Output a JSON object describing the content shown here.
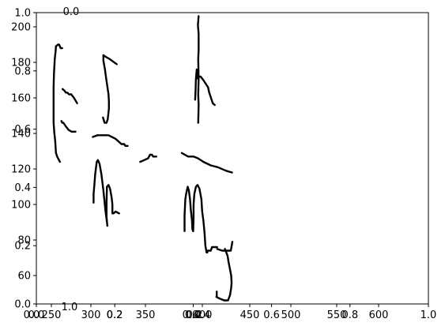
{
  "chart_data": {
    "type": "line",
    "title": "",
    "xlabel": "",
    "ylabel": "",
    "grid": false,
    "legend": "none",
    "axes": [
      {
        "name": "outer",
        "xlim": [
          0,
          1
        ],
        "ylim": [
          0,
          1
        ],
        "x_ticks": [
          "0.0",
          "0.2",
          "0.4",
          "0.6",
          "0.8",
          "1.0"
        ],
        "y_ticks": [
          "0.0",
          "0.2",
          "0.4",
          "0.6",
          "0.8",
          "1.0"
        ]
      },
      {
        "name": "inner",
        "xlim": [
          200,
          1200
        ],
        "ylim": [
          44,
          208
        ],
        "x_ticks": [
          "250",
          "300",
          "350",
          "400",
          "450",
          "500",
          "550",
          "600"
        ],
        "y_ticks": [
          "60",
          "80",
          "100",
          "120",
          "140",
          "160",
          "180",
          "200"
        ]
      }
    ],
    "stray_labels": [
      {
        "text": "0.0",
        "kind": "top"
      },
      {
        "text": "1.0",
        "kind": "bottom"
      },
      {
        "text": "0.0",
        "kind": "bottom-left"
      },
      {
        "text": "0.2",
        "kind": "bottom-left"
      },
      {
        "text": "0.0",
        "kind": "bottom-mid"
      },
      {
        "text": "0.2",
        "kind": "bottom-mid"
      },
      {
        "text": "0.4",
        "kind": "bottom-mid"
      }
    ],
    "series": [
      {
        "values": [
          [
            250,
            189
          ],
          [
            249,
            186
          ],
          [
            247,
            182
          ],
          [
            245,
            174
          ],
          [
            244,
            166
          ],
          [
            244,
            154
          ],
          [
            244,
            146
          ],
          [
            246,
            140
          ],
          [
            248,
            136
          ],
          [
            250,
            129
          ],
          [
            253,
            127
          ],
          [
            260,
            124
          ]
        ]
      },
      {
        "values": [
          [
            250,
            189
          ],
          [
            255,
            190
          ],
          [
            258,
            190
          ],
          [
            262,
            188
          ],
          [
            266,
            188
          ]
        ]
      },
      {
        "values": [
          [
            267,
            165
          ],
          [
            272,
            164
          ],
          [
            275,
            163
          ],
          [
            279,
            163
          ],
          [
            283,
            162
          ],
          [
            289,
            162
          ],
          [
            296,
            160
          ],
          [
            304,
            157
          ]
        ]
      },
      {
        "values": [
          [
            264,
            147
          ],
          [
            266,
            146
          ],
          [
            269,
            146
          ],
          [
            275,
            144
          ],
          [
            282,
            142
          ],
          [
            290,
            141
          ],
          [
            300,
            141
          ]
        ]
      },
      {
        "values": [
          [
            371,
            184
          ],
          [
            371,
            181
          ],
          [
            375,
            176
          ],
          [
            378,
            171
          ],
          [
            384,
            162
          ],
          [
            385,
            158
          ],
          [
            385,
            154
          ],
          [
            382,
            148
          ],
          [
            379,
            146
          ],
          [
            374,
            146
          ],
          [
            370,
            149
          ]
        ]
      },
      {
        "values": [
          [
            371,
            184
          ],
          [
            378,
            183
          ],
          [
            386,
            182
          ],
          [
            405,
            179
          ]
        ]
      },
      {
        "values": [
          [
            344,
            138
          ],
          [
            356,
            139
          ],
          [
            365,
            139
          ],
          [
            384,
            139
          ],
          [
            402,
            137
          ],
          [
            417,
            134
          ],
          [
            424,
            134
          ],
          [
            427,
            133
          ],
          [
            433,
            133
          ]
        ]
      },
      {
        "values": [
          [
            346,
            101
          ],
          [
            346,
            106
          ],
          [
            348,
            111
          ],
          [
            350,
            117
          ],
          [
            354,
            124
          ],
          [
            357,
            125
          ],
          [
            361,
            123
          ],
          [
            366,
            117
          ],
          [
            371,
            108
          ],
          [
            376,
            97
          ],
          [
            380,
            90
          ]
        ]
      },
      {
        "values": [
          [
            381,
            88
          ],
          [
            379,
            93
          ],
          [
            379,
            101
          ],
          [
            380,
            110
          ],
          [
            384,
            111
          ],
          [
            388,
            109
          ],
          [
            392,
            104
          ],
          [
            394,
            100
          ],
          [
            394,
            95
          ],
          [
            397,
            95
          ],
          [
            402,
            96
          ],
          [
            411,
            95
          ]
        ]
      },
      {
        "values": [
          [
            465,
            124
          ],
          [
            475,
            125
          ],
          [
            485,
            126
          ],
          [
            490,
            128
          ],
          [
            495,
            128
          ],
          [
            498,
            127
          ],
          [
            506,
            127
          ]
        ]
      },
      {
        "values": [
          [
            571,
            129
          ],
          [
            587,
            127
          ],
          [
            601,
            127
          ],
          [
            612,
            126
          ],
          [
            626,
            124
          ],
          [
            645,
            122
          ],
          [
            663,
            121
          ],
          [
            684,
            119
          ],
          [
            699,
            118
          ]
        ]
      },
      {
        "values": [
          [
            611,
            171
          ],
          [
            612,
            172
          ],
          [
            619,
            172
          ],
          [
            626,
            170
          ],
          [
            638,
            166
          ],
          [
            641,
            163
          ],
          [
            650,
            157
          ],
          [
            655,
            156
          ]
        ]
      },
      {
        "values": [
          [
            605,
            159
          ],
          [
            606,
            164
          ],
          [
            607,
            171
          ],
          [
            609,
            176
          ],
          [
            611,
            171
          ]
        ]
      },
      {
        "values": [
          [
            614,
            196
          ],
          [
            612,
            201
          ],
          [
            614,
            206
          ]
        ]
      },
      {
        "values": [
          [
            614,
            196
          ],
          [
            614,
            187
          ],
          [
            613,
            182
          ],
          [
            614,
            171
          ],
          [
            613,
            162
          ],
          [
            614,
            156
          ],
          [
            613,
            146
          ]
        ]
      },
      {
        "values": [
          [
            578,
            85
          ],
          [
            578,
            94
          ],
          [
            580,
            103
          ],
          [
            582,
            106
          ],
          [
            586,
            110
          ],
          [
            589,
            108
          ],
          [
            592,
            103
          ],
          [
            594,
            97
          ],
          [
            597,
            91
          ],
          [
            598,
            86
          ],
          [
            600,
            85
          ]
        ]
      },
      {
        "values": [
          [
            600,
            85
          ],
          [
            601,
            93
          ],
          [
            601,
            100
          ],
          [
            603,
            106
          ],
          [
            607,
            110
          ],
          [
            611,
            111
          ],
          [
            616,
            109
          ],
          [
            621,
            103
          ],
          [
            623,
            96
          ],
          [
            626,
            91
          ],
          [
            629,
            84
          ],
          [
            631,
            77
          ],
          [
            634,
            73
          ],
          [
            636,
            73
          ]
        ]
      },
      {
        "values": [
          [
            636,
            73
          ],
          [
            636,
            74
          ],
          [
            645,
            74
          ],
          [
            648,
            76
          ],
          [
            661,
            76
          ]
        ]
      },
      {
        "values": [
          [
            681,
            75
          ],
          [
            688,
            71
          ],
          [
            690,
            68
          ],
          [
            697,
            60
          ],
          [
            698,
            56
          ],
          [
            697,
            53
          ],
          [
            694,
            49
          ],
          [
            689,
            46
          ],
          [
            679,
            46
          ],
          [
            668,
            47
          ],
          [
            659,
            48
          ]
        ]
      },
      {
        "values": [
          [
            660,
            48
          ],
          [
            660,
            51
          ]
        ]
      },
      {
        "values": [
          [
            661,
            75
          ],
          [
            674,
            74
          ],
          [
            687,
            74
          ],
          [
            696,
            74
          ],
          [
            700,
            79
          ]
        ]
      }
    ]
  }
}
